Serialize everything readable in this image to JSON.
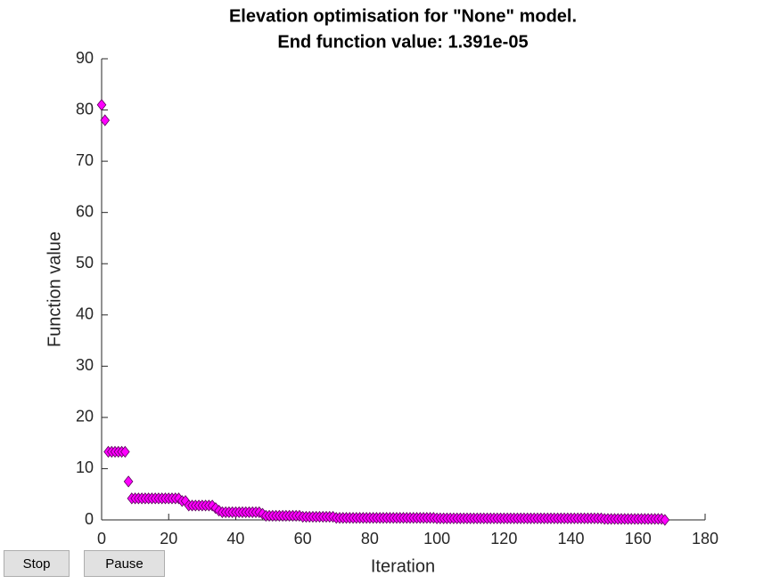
{
  "chart_data": {
    "type": "scatter",
    "title": [
      "Elevation optimisation for \"None\" model.",
      "End function value: 1.391e-05"
    ],
    "xlabel": "Iteration",
    "ylabel": "Function value",
    "xlim": [
      0,
      180
    ],
    "xticks": [
      0,
      20,
      40,
      60,
      80,
      100,
      120,
      140,
      160,
      180
    ],
    "ylim": [
      0,
      90
    ],
    "yticks": [
      0,
      10,
      20,
      30,
      40,
      50,
      60,
      70,
      80,
      90
    ],
    "color": "#ff00ff",
    "marker": "diamond",
    "x": [
      0,
      1,
      2,
      3,
      4,
      5,
      6,
      7,
      8,
      9,
      10,
      11,
      12,
      13,
      14,
      15,
      16,
      17,
      18,
      19,
      20,
      21,
      22,
      23,
      24,
      25,
      26,
      27,
      28,
      29,
      30,
      31,
      32,
      33,
      34,
      35,
      36,
      37,
      38,
      39,
      40,
      41,
      42,
      43,
      44,
      45,
      46,
      47,
      48,
      49,
      50,
      51,
      52,
      53,
      54,
      55,
      56,
      57,
      58,
      59,
      60,
      61,
      62,
      63,
      64,
      65,
      66,
      67,
      68,
      69,
      70,
      71,
      72,
      73,
      74,
      75,
      76,
      77,
      78,
      79,
      80,
      81,
      82,
      83,
      84,
      85,
      86,
      87,
      88,
      89,
      90,
      91,
      92,
      93,
      94,
      95,
      96,
      97,
      98,
      99,
      100,
      101,
      102,
      103,
      104,
      105,
      106,
      107,
      108,
      109,
      110,
      111,
      112,
      113,
      114,
      115,
      116,
      117,
      118,
      119,
      120,
      121,
      122,
      123,
      124,
      125,
      126,
      127,
      128,
      129,
      130,
      131,
      132,
      133,
      134,
      135,
      136,
      137,
      138,
      139,
      140,
      141,
      142,
      143,
      144,
      145,
      146,
      147,
      148,
      149,
      150,
      151,
      152,
      153,
      154,
      155,
      156,
      157,
      158,
      159,
      160,
      161,
      162,
      163,
      164,
      165,
      166,
      167,
      168
    ],
    "values": [
      81,
      78,
      13.3,
      13.3,
      13.3,
      13.3,
      13.3,
      13.3,
      7.5,
      4.2,
      4.2,
      4.2,
      4.2,
      4.2,
      4.2,
      4.2,
      4.2,
      4.2,
      4.2,
      4.2,
      4.2,
      4.2,
      4.2,
      4.2,
      3.7,
      3.7,
      2.8,
      2.8,
      2.8,
      2.8,
      2.8,
      2.8,
      2.8,
      2.8,
      2.3,
      1.8,
      1.5,
      1.5,
      1.5,
      1.5,
      1.5,
      1.5,
      1.5,
      1.5,
      1.5,
      1.5,
      1.5,
      1.5,
      1.2,
      0.8,
      0.8,
      0.8,
      0.8,
      0.8,
      0.8,
      0.8,
      0.8,
      0.8,
      0.8,
      0.8,
      0.6,
      0.6,
      0.6,
      0.6,
      0.6,
      0.6,
      0.6,
      0.6,
      0.6,
      0.6,
      0.4,
      0.4,
      0.4,
      0.4,
      0.4,
      0.4,
      0.4,
      0.4,
      0.4,
      0.4,
      0.4,
      0.4,
      0.4,
      0.4,
      0.4,
      0.4,
      0.4,
      0.4,
      0.4,
      0.4,
      0.4,
      0.4,
      0.4,
      0.4,
      0.4,
      0.4,
      0.4,
      0.4,
      0.4,
      0.4,
      0.3,
      0.3,
      0.3,
      0.3,
      0.3,
      0.3,
      0.3,
      0.3,
      0.3,
      0.3,
      0.3,
      0.3,
      0.3,
      0.3,
      0.3,
      0.3,
      0.3,
      0.3,
      0.3,
      0.3,
      0.3,
      0.3,
      0.3,
      0.3,
      0.3,
      0.3,
      0.3,
      0.3,
      0.3,
      0.3,
      0.3,
      0.3,
      0.3,
      0.3,
      0.3,
      0.3,
      0.3,
      0.3,
      0.3,
      0.3,
      0.3,
      0.3,
      0.3,
      0.3,
      0.3,
      0.3,
      0.3,
      0.3,
      0.3,
      0.3,
      0.2,
      0.2,
      0.2,
      0.2,
      0.2,
      0.2,
      0.2,
      0.2,
      0.2,
      0.2,
      0.2,
      0.2,
      0.2,
      0.2,
      0.2,
      0.2,
      0.2,
      0.2,
      1.391e-05
    ]
  },
  "controls": {
    "stop": "Stop",
    "pause": "Pause"
  }
}
